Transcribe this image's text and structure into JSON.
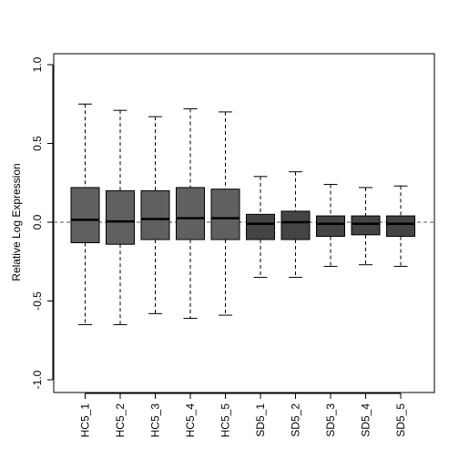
{
  "chart_data": {
    "type": "boxplot",
    "title": "",
    "xlabel": "",
    "ylabel": "Relative Log Expression",
    "ylim": [
      -1.0,
      1.0
    ],
    "yticks": [
      -1.0,
      -0.5,
      0.0,
      0.5,
      1.0
    ],
    "ytick_labels": [
      "-1.0",
      "-0.5",
      "0.0",
      "0.5",
      "1.0"
    ],
    "reference_line": 0.0,
    "grid": false,
    "colors": {
      "hc": "#606060",
      "sd": "#444444"
    },
    "categories": [
      "HC5_1",
      "HC5_2",
      "HC5_3",
      "HC5_4",
      "HC5_5",
      "SD5_1",
      "SD5_2",
      "SD5_3",
      "SD5_4",
      "SD5_5"
    ],
    "groups": [
      "hc",
      "hc",
      "hc",
      "hc",
      "hc",
      "sd",
      "sd",
      "sd",
      "sd",
      "sd"
    ],
    "boxes": [
      {
        "whisker_low": -0.65,
        "q1": -0.13,
        "median": 0.015,
        "q3": 0.22,
        "whisker_high": 0.75
      },
      {
        "whisker_low": -0.65,
        "q1": -0.14,
        "median": 0.005,
        "q3": 0.2,
        "whisker_high": 0.71
      },
      {
        "whisker_low": -0.58,
        "q1": -0.11,
        "median": 0.02,
        "q3": 0.2,
        "whisker_high": 0.67
      },
      {
        "whisker_low": -0.61,
        "q1": -0.11,
        "median": 0.025,
        "q3": 0.22,
        "whisker_high": 0.72
      },
      {
        "whisker_low": -0.59,
        "q1": -0.11,
        "median": 0.025,
        "q3": 0.21,
        "whisker_high": 0.7
      },
      {
        "whisker_low": -0.35,
        "q1": -0.11,
        "median": -0.01,
        "q3": 0.05,
        "whisker_high": 0.29
      },
      {
        "whisker_low": -0.35,
        "q1": -0.11,
        "median": 0.0,
        "q3": 0.07,
        "whisker_high": 0.32
      },
      {
        "whisker_low": -0.28,
        "q1": -0.09,
        "median": -0.01,
        "q3": 0.04,
        "whisker_high": 0.24
      },
      {
        "whisker_low": -0.27,
        "q1": -0.08,
        "median": -0.01,
        "q3": 0.04,
        "whisker_high": 0.22
      },
      {
        "whisker_low": -0.28,
        "q1": -0.09,
        "median": -0.01,
        "q3": 0.04,
        "whisker_high": 0.23
      }
    ]
  }
}
